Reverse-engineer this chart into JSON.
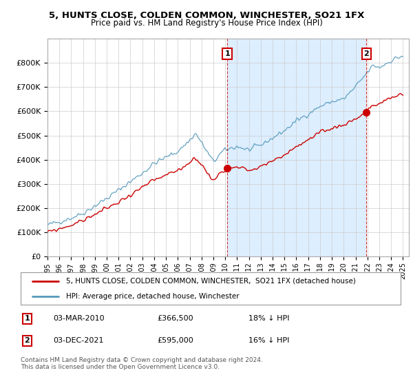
{
  "title1": "5, HUNTS CLOSE, COLDEN COMMON, WINCHESTER, SO21 1FX",
  "title2": "Price paid vs. HM Land Registry's House Price Index (HPI)",
  "ylim": [
    0,
    900000
  ],
  "xlim_start": 1995.0,
  "xlim_end": 2025.5,
  "marker1_x": 2010.17,
  "marker1_y": 366500,
  "marker2_x": 2021.92,
  "marker2_y": 595000,
  "legend_line1": "5, HUNTS CLOSE, COLDEN COMMON, WINCHESTER,  SO21 1FX (detached house)",
  "legend_line2": "HPI: Average price, detached house, Winchester",
  "line_color_red": "#cc0000",
  "line_color_blue": "#5599bb",
  "shade_color": "#ddeeff",
  "background_color": "#ffffff",
  "grid_color": "#cccccc",
  "marker_box_color": "#cc0000",
  "hpi_anchors_x": [
    1995,
    1996,
    1997,
    1998,
    1999,
    2000,
    2001,
    2002,
    2003,
    2004,
    2005,
    2006,
    2007,
    2007.5,
    2008,
    2008.5,
    2009,
    2009.5,
    2010,
    2011,
    2012,
    2013,
    2014,
    2015,
    2016,
    2017,
    2018,
    2019,
    2020,
    2021,
    2022,
    2022.5,
    2023,
    2024,
    2025
  ],
  "hpi_anchors_y": [
    130000,
    145000,
    160000,
    180000,
    210000,
    240000,
    275000,
    310000,
    345000,
    385000,
    410000,
    435000,
    480000,
    510000,
    470000,
    430000,
    390000,
    420000,
    440000,
    455000,
    440000,
    460000,
    490000,
    520000,
    560000,
    590000,
    620000,
    640000,
    650000,
    700000,
    760000,
    790000,
    780000,
    810000,
    830000
  ],
  "price_anchors_x": [
    1995,
    1996,
    1997,
    1998,
    1999,
    2000,
    2001,
    2002,
    2003,
    2004,
    2005,
    2006,
    2007,
    2007.5,
    2008,
    2008.5,
    2009,
    2009.5,
    2010.17,
    2011,
    2012,
    2013,
    2014,
    2015,
    2016,
    2017,
    2018,
    2019,
    2020,
    2021,
    2021.92,
    2022,
    2023,
    2024,
    2025
  ],
  "price_anchors_y": [
    100000,
    115000,
    130000,
    150000,
    175000,
    200000,
    225000,
    255000,
    285000,
    315000,
    335000,
    355000,
    390000,
    410000,
    380000,
    345000,
    310000,
    345000,
    366500,
    375000,
    355000,
    370000,
    395000,
    420000,
    455000,
    480000,
    510000,
    530000,
    545000,
    570000,
    595000,
    610000,
    630000,
    655000,
    675000
  ]
}
